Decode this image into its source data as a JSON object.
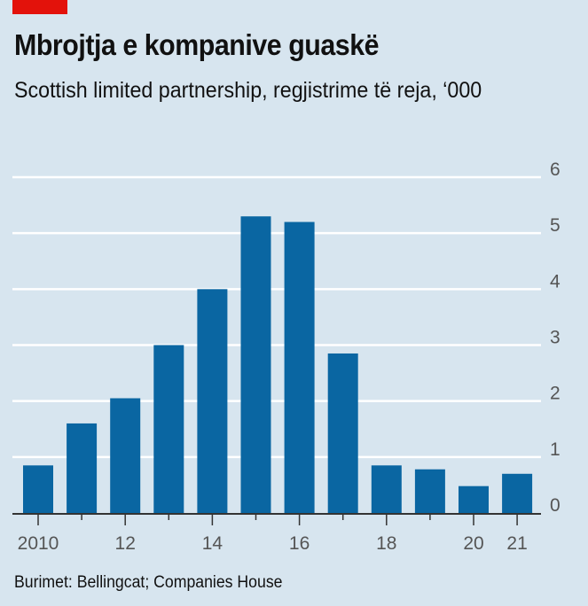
{
  "header": {
    "title": "Mbrojtja e kompanive guaskë",
    "subtitle": "Scottish limited partnership, regjistrime të reja, ‘000"
  },
  "source": "Burimet: Bellingcat; Companies House",
  "colors": {
    "background": "#d7e5ef",
    "bar": "#0a66a2",
    "grid": "#ffffff",
    "accent": "#e3120b"
  },
  "chart_data": {
    "type": "bar",
    "title": "Mbrojtja e kompanive guaskë",
    "subtitle": "Scottish limited partnership, regjistrime të reja, ‘000",
    "categories": [
      "2010",
      "2011",
      "2012",
      "2013",
      "2014",
      "2015",
      "2016",
      "2017",
      "2018",
      "2019",
      "2020",
      "2021"
    ],
    "values": [
      0.85,
      1.6,
      2.05,
      3.0,
      4.0,
      5.3,
      5.2,
      2.85,
      0.85,
      0.78,
      0.48,
      0.7
    ],
    "x_tick_labels": [
      "2010",
      "",
      "12",
      "",
      "14",
      "",
      "16",
      "",
      "18",
      "",
      "20",
      "21"
    ],
    "y_ticks": [
      "0",
      "1",
      "2",
      "3",
      "4",
      "5",
      "6"
    ],
    "ylim": [
      0,
      6
    ],
    "xlabel": "",
    "ylabel": "",
    "grid": true,
    "y_axis_side": "right"
  }
}
